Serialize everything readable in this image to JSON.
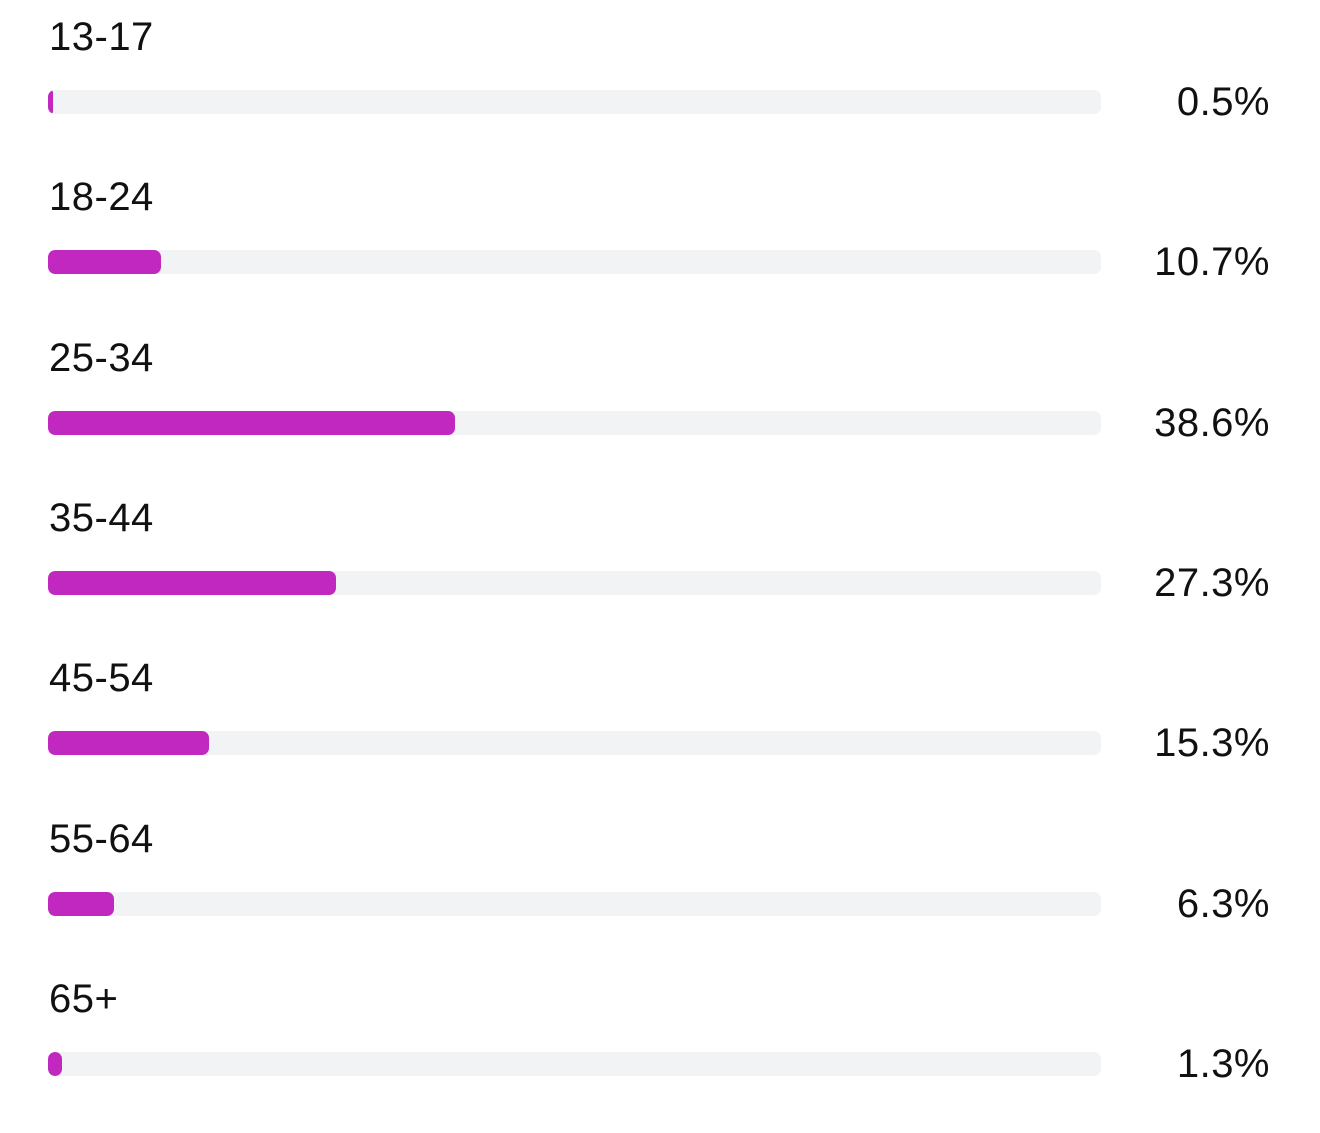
{
  "colors": {
    "bar_fill": "#c028c0",
    "bar_track": "#f2f3f5",
    "text": "#111111"
  },
  "chart_data": {
    "type": "bar",
    "orientation": "horizontal",
    "categories": [
      "13-17",
      "18-24",
      "25-34",
      "35-44",
      "45-54",
      "55-64",
      "65+"
    ],
    "values": [
      0.5,
      10.7,
      38.6,
      27.3,
      15.3,
      6.3,
      1.3
    ],
    "value_labels": [
      "0.5%",
      "10.7%",
      "38.6%",
      "27.3%",
      "15.3%",
      "6.3%",
      "1.3%"
    ],
    "unit": "%",
    "xlim": [
      0,
      100
    ],
    "title": "",
    "xlabel": "",
    "ylabel": "",
    "grid": false,
    "legend": "none"
  }
}
